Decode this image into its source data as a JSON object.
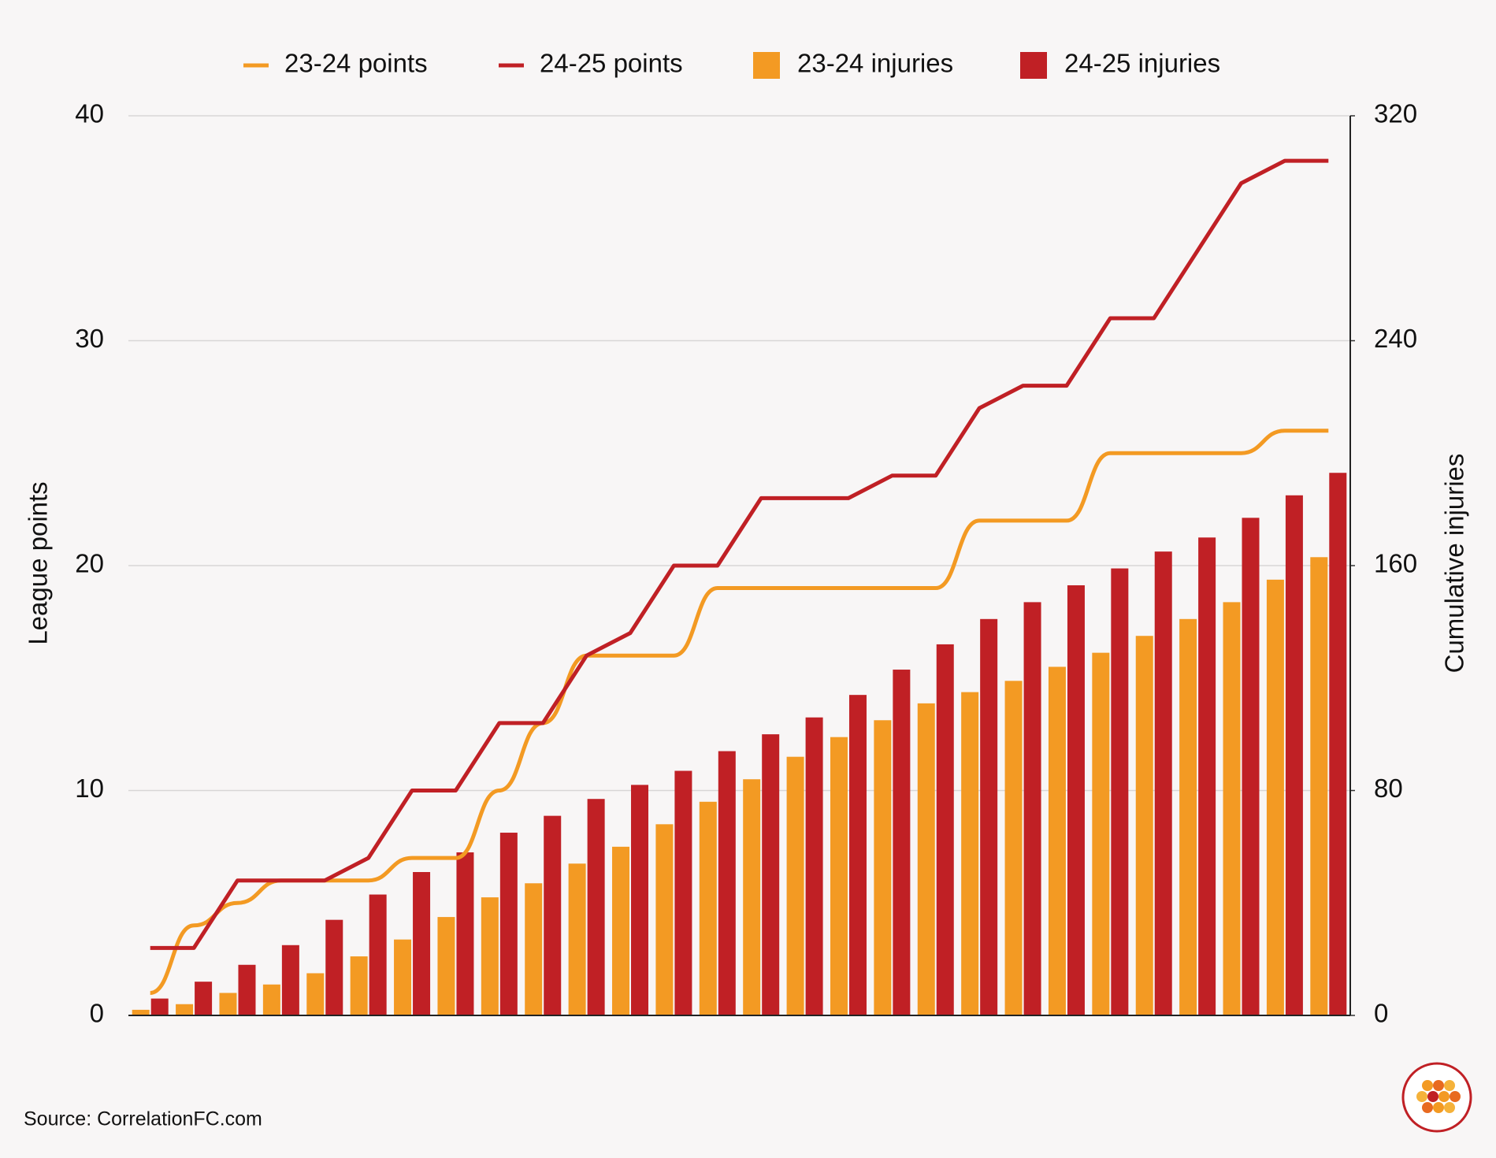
{
  "chart_data": {
    "type": "bar",
    "categories": [
      null,
      null,
      null,
      null,
      null,
      null,
      null,
      null,
      null,
      null,
      null,
      null,
      null,
      null,
      null,
      null,
      null,
      null,
      null,
      null,
      null,
      null,
      null,
      null,
      null,
      null,
      null,
      null
    ],
    "series": [
      {
        "name": "23-24 points",
        "type": "line",
        "smooth": true,
        "color": "#f39a23",
        "values": [
          1,
          4,
          5,
          6,
          6,
          6,
          7,
          7,
          10,
          13,
          16,
          16,
          16,
          19,
          19,
          19,
          19,
          19,
          19,
          22,
          22,
          22,
          25,
          25,
          25,
          25,
          26,
          26
        ]
      },
      {
        "name": "24-25 points",
        "type": "line",
        "smooth": false,
        "color": "#c02025",
        "values": [
          3,
          3,
          6,
          6,
          6,
          7,
          10,
          10,
          13,
          13,
          16,
          17,
          20,
          20,
          23,
          23,
          23,
          24,
          24,
          27,
          28,
          28,
          31,
          31,
          34,
          37,
          38,
          38
        ]
      },
      {
        "name": "23-24 injuries",
        "type": "bar",
        "axis": "y2",
        "color": "#f39a23",
        "values": [
          2,
          4,
          8,
          11,
          15,
          21,
          27,
          35,
          42,
          47,
          54,
          60,
          68,
          76,
          84,
          92,
          99,
          105,
          111,
          115,
          119,
          124,
          129,
          135,
          141,
          147,
          155,
          163
        ]
      },
      {
        "name": "24-25 injuries",
        "type": "bar",
        "axis": "y2",
        "color": "#c02025",
        "values": [
          6,
          12,
          18,
          25,
          34,
          43,
          51,
          58,
          65,
          71,
          77,
          82,
          87,
          94,
          100,
          106,
          114,
          123,
          132,
          141,
          147,
          153,
          159,
          165,
          170,
          177,
          185,
          193
        ]
      }
    ],
    "ylabel": "League points",
    "y2label": "Cumulative injuries",
    "ylim": [
      0,
      40
    ],
    "yticks": [
      0,
      10,
      20,
      30,
      40
    ],
    "y2lim": [
      0,
      320
    ],
    "y2ticks": [
      0,
      80,
      160,
      240,
      320
    ],
    "grid": true,
    "legend": "top",
    "source": "Source: CorrelationFC.com"
  }
}
